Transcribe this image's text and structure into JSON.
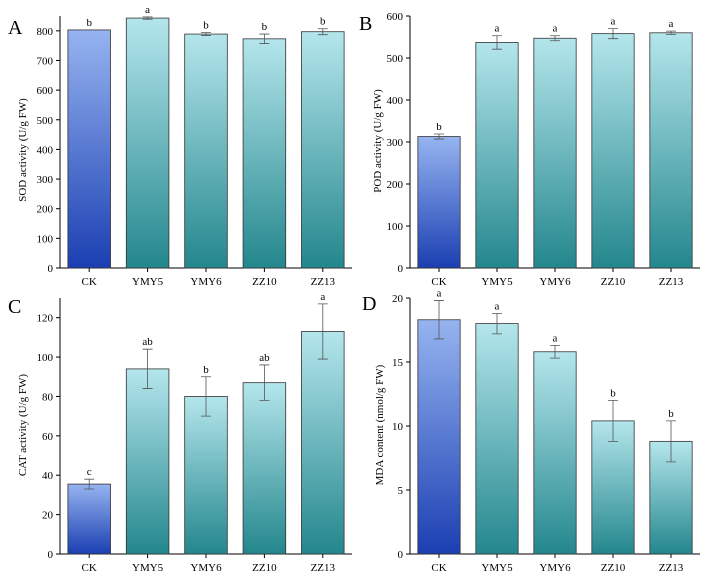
{
  "colors": {
    "ck_top": "#96b4f0",
    "ck_bottom": "#1b3fb2",
    "treat_top": "#b4e6ec",
    "treat_bottom": "#23878d"
  },
  "chart_data": [
    {
      "panel": "A",
      "type": "bar",
      "ylabel": "SOD activity (U/g FW)",
      "categories": [
        "CK",
        "YMY5",
        "YMY6",
        "ZZ10",
        "ZZ13"
      ],
      "values": [
        803,
        843,
        789,
        773,
        797
      ],
      "errors": [
        0,
        4,
        5,
        16,
        10
      ],
      "labels": [
        "b",
        "a",
        "b",
        "b",
        "b"
      ],
      "ylim": [
        0,
        850
      ],
      "yticks": [
        0,
        100,
        200,
        300,
        400,
        500,
        600,
        700,
        800
      ]
    },
    {
      "panel": "B",
      "type": "bar",
      "ylabel": "POD activity (U/g FW)",
      "categories": [
        "CK",
        "YMY5",
        "YMY6",
        "ZZ10",
        "ZZ13"
      ],
      "values": [
        313,
        537,
        547,
        558,
        560
      ],
      "errors": [
        6,
        16,
        6,
        12,
        4
      ],
      "labels": [
        "b",
        "a",
        "a",
        "a",
        "a"
      ],
      "ylim": [
        0,
        600
      ],
      "yticks": [
        0,
        100,
        200,
        300,
        400,
        500,
        600
      ]
    },
    {
      "panel": "C",
      "type": "bar",
      "ylabel": "CAT activity (U/g FW)",
      "categories": [
        "CK",
        "YMY5",
        "YMY6",
        "ZZ10",
        "ZZ13"
      ],
      "values": [
        35.5,
        94,
        80,
        87,
        113
      ],
      "errors": [
        2.5,
        10,
        10,
        9,
        14
      ],
      "labels": [
        "c",
        "ab",
        "b",
        "ab",
        "a"
      ],
      "ylim": [
        0,
        130
      ],
      "yticks": [
        0,
        20,
        40,
        60,
        80,
        100,
        120
      ]
    },
    {
      "panel": "D",
      "type": "bar",
      "ylabel": "MDA content (nmol/g FW)",
      "categories": [
        "CK",
        "YMY5",
        "YMY6",
        "ZZ10",
        "ZZ13"
      ],
      "values": [
        18.3,
        18.0,
        15.8,
        10.4,
        8.8
      ],
      "errors": [
        1.5,
        0.8,
        0.5,
        1.6,
        1.6
      ],
      "labels": [
        "a",
        "a",
        "a",
        "b",
        "b"
      ],
      "ylim": [
        0,
        20
      ],
      "yticks": [
        0,
        5,
        10,
        15,
        20
      ]
    }
  ]
}
